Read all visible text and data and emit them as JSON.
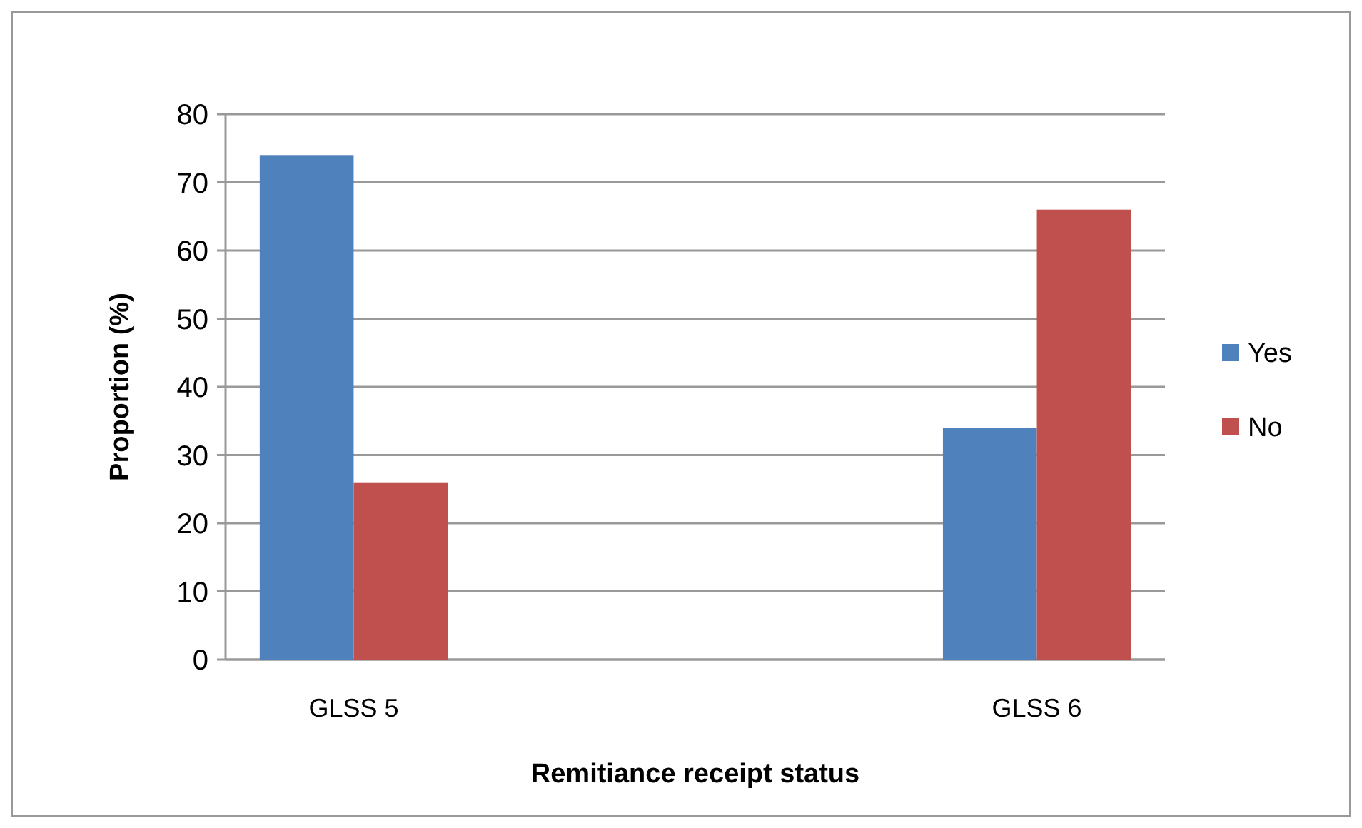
{
  "chart_data": {
    "type": "bar",
    "xlabel": "Remitiance receipt status",
    "ylabel": "Proportion (%)",
    "categories": [
      "GLSS 5",
      null,
      "GLSS 6"
    ],
    "series": [
      {
        "name": "Yes",
        "color": "#4f81bd",
        "values": [
          74,
          0,
          34
        ]
      },
      {
        "name": "No",
        "color": "#c0504d",
        "values": [
          26,
          0,
          66
        ]
      }
    ],
    "ylim": [
      0,
      80
    ],
    "yticks": [
      0,
      10,
      20,
      30,
      40,
      50,
      60,
      70,
      80
    ],
    "grid": "y",
    "legend": "right"
  }
}
